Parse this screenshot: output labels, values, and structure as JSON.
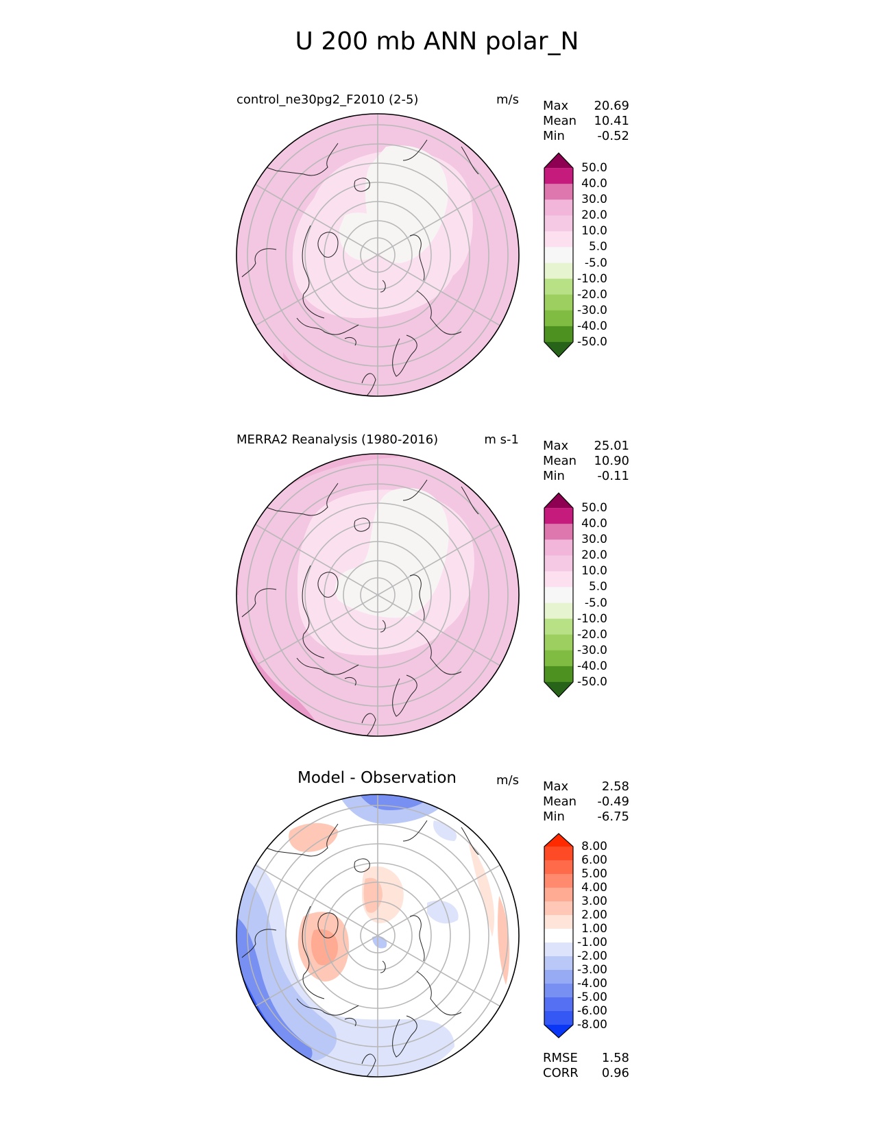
{
  "figure": {
    "title": "U 200 mb ANN polar_N"
  },
  "panels": [
    {
      "title": "control_ne30pg2_F2010 (2-5)",
      "units": "m/s",
      "stats": [
        {
          "label": "Max",
          "value": "20.69"
        },
        {
          "label": "Mean",
          "value": "10.41"
        },
        {
          "label": "Min",
          "value": "-0.52"
        }
      ],
      "colorbar": {
        "labels": [
          "50.0",
          "40.0",
          "30.0",
          "20.0",
          "10.0",
          "5.0",
          "-5.0",
          "-10.0",
          "-20.0",
          "-30.0",
          "-40.0",
          "-50.0"
        ],
        "colors": [
          "#8e0152",
          "#c51b7d",
          "#de77ae",
          "#f1b6da",
          "#f5c8e4",
          "#fde0ef",
          "#f7f7f7",
          "#e6f5d0",
          "#b8e186",
          "#9ccf60",
          "#7fbc41",
          "#4d9221",
          "#276419"
        ]
      }
    },
    {
      "title": "MERRA2 Reanalysis (1980-2016)",
      "units": "m s-1",
      "stats": [
        {
          "label": "Max",
          "value": "25.01"
        },
        {
          "label": "Mean",
          "value": "10.90"
        },
        {
          "label": "Min",
          "value": "-0.11"
        }
      ],
      "colorbar": {
        "labels": [
          "50.0",
          "40.0",
          "30.0",
          "20.0",
          "10.0",
          "5.0",
          "-5.0",
          "-10.0",
          "-20.0",
          "-30.0",
          "-40.0",
          "-50.0"
        ],
        "colors": [
          "#8e0152",
          "#c51b7d",
          "#de77ae",
          "#f1b6da",
          "#f5c8e4",
          "#fde0ef",
          "#f7f7f7",
          "#e6f5d0",
          "#b8e186",
          "#9ccf60",
          "#7fbc41",
          "#4d9221",
          "#276419"
        ]
      }
    },
    {
      "title": "Model - Observation",
      "units": "m/s",
      "stats": [
        {
          "label": "Max",
          "value": "2.58"
        },
        {
          "label": "Mean",
          "value": "-0.49"
        },
        {
          "label": "Min",
          "value": "-6.75"
        }
      ],
      "colorbar": {
        "labels": [
          "8.00",
          "6.00",
          "5.00",
          "4.00",
          "3.00",
          "2.00",
          "1.00",
          "-1.00",
          "-2.00",
          "-3.00",
          "-4.00",
          "-5.00",
          "-6.00",
          "-8.00"
        ],
        "colors": [
          "#ff2a00",
          "#ff4a26",
          "#ff6a4a",
          "#ff8a6e",
          "#ffaa92",
          "#ffc8b6",
          "#ffe4da",
          "#ffffff",
          "#dce3fb",
          "#bac8f7",
          "#97aaf4",
          "#7890f2",
          "#5570f2",
          "#3558f4",
          "#0a36f5"
        ]
      },
      "metrics": [
        {
          "label": "RMSE",
          "value": "1.58"
        },
        {
          "label": "CORR",
          "value": "0.96"
        }
      ]
    }
  ]
}
